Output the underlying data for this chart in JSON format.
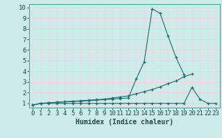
{
  "title": "",
  "xlabel": "Humidex (Indice chaleur)",
  "xlim": [
    -0.5,
    23.5
  ],
  "ylim": [
    0.6,
    10.3
  ],
  "bg_color": "#ceeaea",
  "grid_color": "#f0d8d8",
  "line_color": "#1a6b6b",
  "x": [
    0,
    1,
    2,
    3,
    4,
    5,
    6,
    7,
    8,
    9,
    10,
    11,
    12,
    13,
    14,
    15,
    16,
    17,
    18,
    19,
    20,
    21,
    22,
    23
  ],
  "line1": [
    0.85,
    1.0,
    1.05,
    1.1,
    1.15,
    1.18,
    1.2,
    1.25,
    1.3,
    1.35,
    1.4,
    1.45,
    1.5,
    3.3,
    4.9,
    9.85,
    9.45,
    7.3,
    5.3,
    3.7,
    null,
    null,
    null,
    null
  ],
  "line2": [
    0.85,
    1.0,
    1.05,
    1.1,
    1.15,
    1.2,
    1.25,
    1.3,
    1.35,
    1.4,
    1.5,
    1.6,
    1.7,
    1.9,
    2.1,
    2.3,
    2.55,
    2.85,
    3.1,
    3.5,
    3.75,
    null,
    null,
    null
  ],
  "line3": [
    0.85,
    1.0,
    1.0,
    1.0,
    1.0,
    1.0,
    1.0,
    1.0,
    1.0,
    1.0,
    1.0,
    1.0,
    1.0,
    1.0,
    1.0,
    1.0,
    1.0,
    1.0,
    1.0,
    1.0,
    2.5,
    1.4,
    1.0,
    1.0
  ],
  "xticks": [
    0,
    1,
    2,
    3,
    4,
    5,
    6,
    7,
    8,
    9,
    10,
    11,
    12,
    13,
    14,
    15,
    16,
    17,
    18,
    19,
    20,
    21,
    22,
    23
  ],
  "yticks": [
    1,
    2,
    3,
    4,
    5,
    6,
    7,
    8,
    9,
    10
  ],
  "xlabel_fontsize": 7,
  "tick_fontsize": 6.5
}
